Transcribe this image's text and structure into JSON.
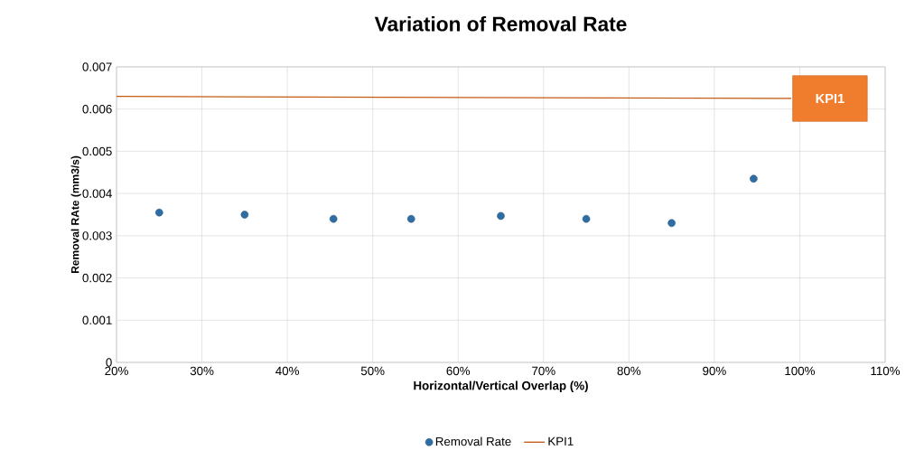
{
  "chart_data": {
    "type": "scatter",
    "title": "Variation of Removal Rate",
    "xlabel": "Horizontal/Vertical Overlap  (%)",
    "ylabel": "Removal RAte (mm3/s)",
    "series": [
      {
        "name": "Removal Rate",
        "color": "#2e6ea6",
        "marker": "circle",
        "x": [
          25,
          35,
          45.4,
          54.5,
          65,
          75,
          85,
          94.6
        ],
        "values": [
          0.00355,
          0.0035,
          0.0034,
          0.0034,
          0.00347,
          0.0034,
          0.0033,
          0.00435
        ]
      },
      {
        "name": "KPI1",
        "type": "line",
        "color": "#c55a11",
        "marker": "none",
        "x": [
          20,
          99
        ],
        "values": [
          0.0063,
          0.00625
        ]
      }
    ],
    "xlim": [
      20,
      110
    ],
    "ylim": [
      0,
      0.007
    ],
    "xticks": [
      {
        "value": 20,
        "label": "20%"
      },
      {
        "value": 30,
        "label": "30%"
      },
      {
        "value": 40,
        "label": "40%"
      },
      {
        "value": 50,
        "label": "50%"
      },
      {
        "value": 60,
        "label": "60%"
      },
      {
        "value": 70,
        "label": "70%"
      },
      {
        "value": 80,
        "label": "80%"
      },
      {
        "value": 90,
        "label": "90%"
      },
      {
        "value": 100,
        "label": "100%"
      },
      {
        "value": 110,
        "label": "110%"
      }
    ],
    "yticks": [
      0,
      0.001,
      0.002,
      0.003,
      0.004,
      0.005,
      0.006,
      0.007
    ],
    "grid": true,
    "legend": "bottom",
    "annotations": [
      {
        "text": "KPI1",
        "x": 99,
        "y": 0.00625
      }
    ]
  }
}
